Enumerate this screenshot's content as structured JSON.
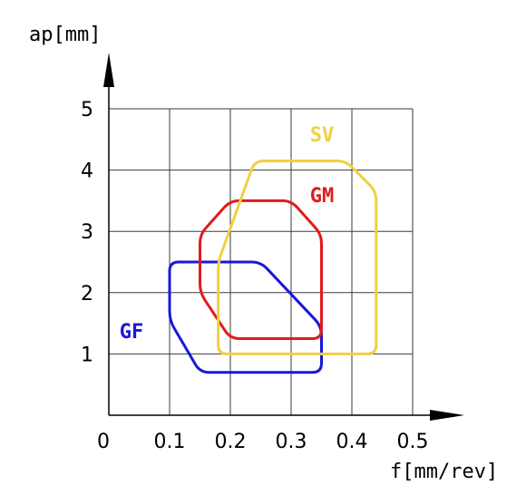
{
  "chart_data": {
    "type": "area",
    "xlabel": "f[mm/rev]",
    "ylabel": "ap[mm]",
    "xlim": [
      0,
      0.5
    ],
    "ylim": [
      0,
      5
    ],
    "x_ticks": [
      "0",
      "0.1",
      "0.2",
      "0.3",
      "0.4",
      "0.5"
    ],
    "y_ticks": [
      "1",
      "2",
      "3",
      "4",
      "5"
    ],
    "grid": true,
    "series": [
      {
        "name": "GF",
        "color": "#1818d8",
        "points": [
          [
            0.1,
            2.5
          ],
          [
            0.25,
            2.5
          ],
          [
            0.35,
            1.45
          ],
          [
            0.35,
            0.7
          ],
          [
            0.15,
            0.7
          ],
          [
            0.1,
            1.55
          ]
        ]
      },
      {
        "name": "GM",
        "color": "#e01b1b",
        "points": [
          [
            0.2,
            3.5
          ],
          [
            0.3,
            3.5
          ],
          [
            0.35,
            2.95
          ],
          [
            0.35,
            1.25
          ],
          [
            0.2,
            1.25
          ],
          [
            0.15,
            2.0
          ],
          [
            0.15,
            2.95
          ]
        ]
      },
      {
        "name": "SV",
        "color": "#f0d040",
        "points": [
          [
            0.24,
            4.15
          ],
          [
            0.39,
            4.15
          ],
          [
            0.44,
            3.65
          ],
          [
            0.44,
            1.0
          ],
          [
            0.18,
            1.0
          ],
          [
            0.18,
            2.5
          ]
        ]
      }
    ]
  }
}
